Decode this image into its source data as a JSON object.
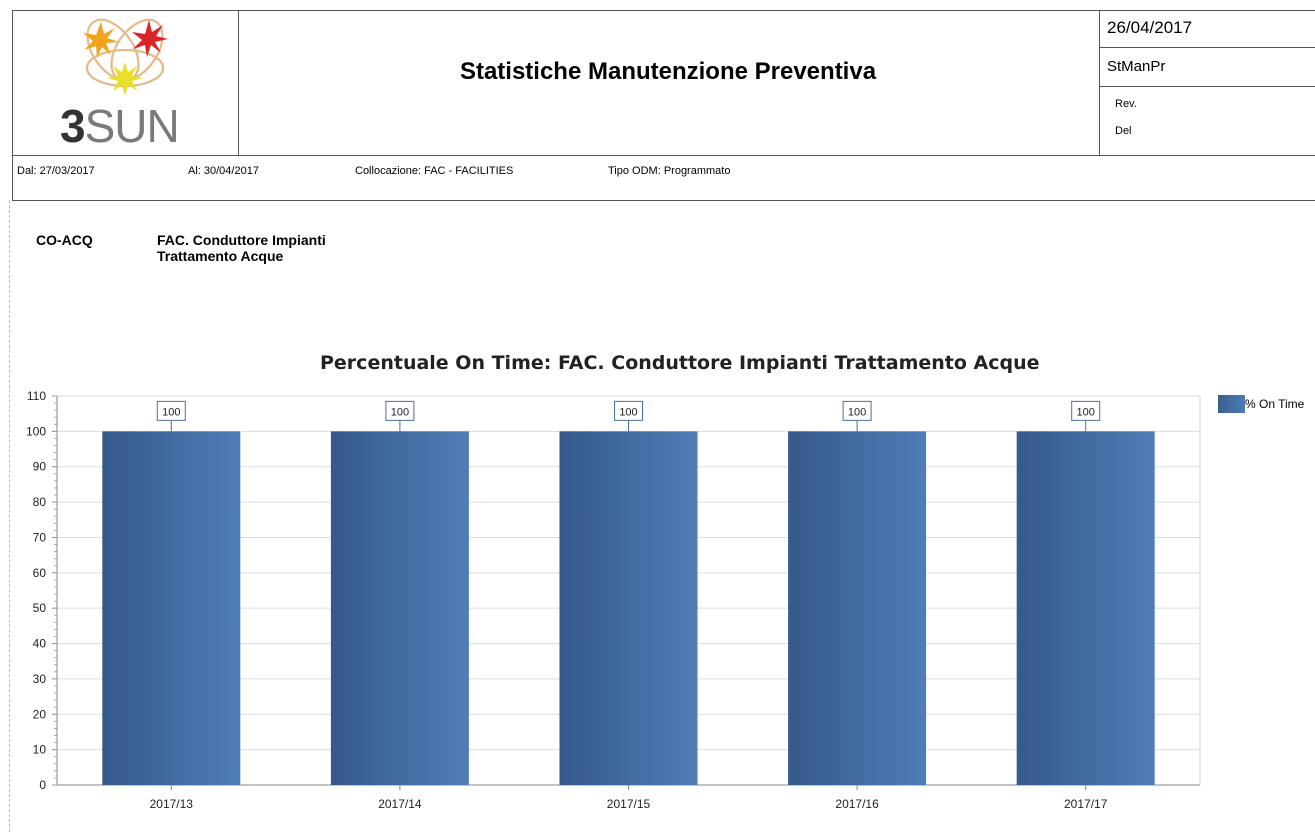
{
  "header": {
    "logo_text_bold": "3",
    "logo_text_rest": "SUN",
    "title": "Statistiche Manutenzione Preventiva",
    "date": "26/04/2017",
    "report_code": "StManPr",
    "rev_label": "Rev.",
    "del_label": "Del"
  },
  "filters": {
    "dal": "Dal: 27/03/2017",
    "al": "Al: 30/04/2017",
    "collocazione": "Collocazione: FAC - FACILITIES",
    "tipo_odm": "Tipo ODM: Programmato"
  },
  "group": {
    "code": "CO-ACQ",
    "desc_line1": "FAC. Conduttore Impianti",
    "desc_line2": "Trattamento Acque"
  },
  "chart_data": {
    "type": "bar",
    "title": "Percentuale On Time: FAC. Conduttore Impianti Trattamento Acque",
    "categories": [
      "2017/13",
      "2017/14",
      "2017/15",
      "2017/16",
      "2017/17"
    ],
    "series": [
      {
        "name": "% On Time",
        "values": [
          100,
          100,
          100,
          100,
          100
        ]
      }
    ],
    "ylim": [
      0,
      110
    ],
    "yticks": [
      0,
      10,
      20,
      30,
      40,
      50,
      60,
      70,
      80,
      90,
      100,
      110
    ],
    "xlabel": "",
    "ylabel": "",
    "grid": true,
    "legend_position": "right",
    "colors": {
      "bar_dark": "#35598a",
      "bar_light": "#4f7db7",
      "label_border": "#4a6f9e"
    }
  }
}
